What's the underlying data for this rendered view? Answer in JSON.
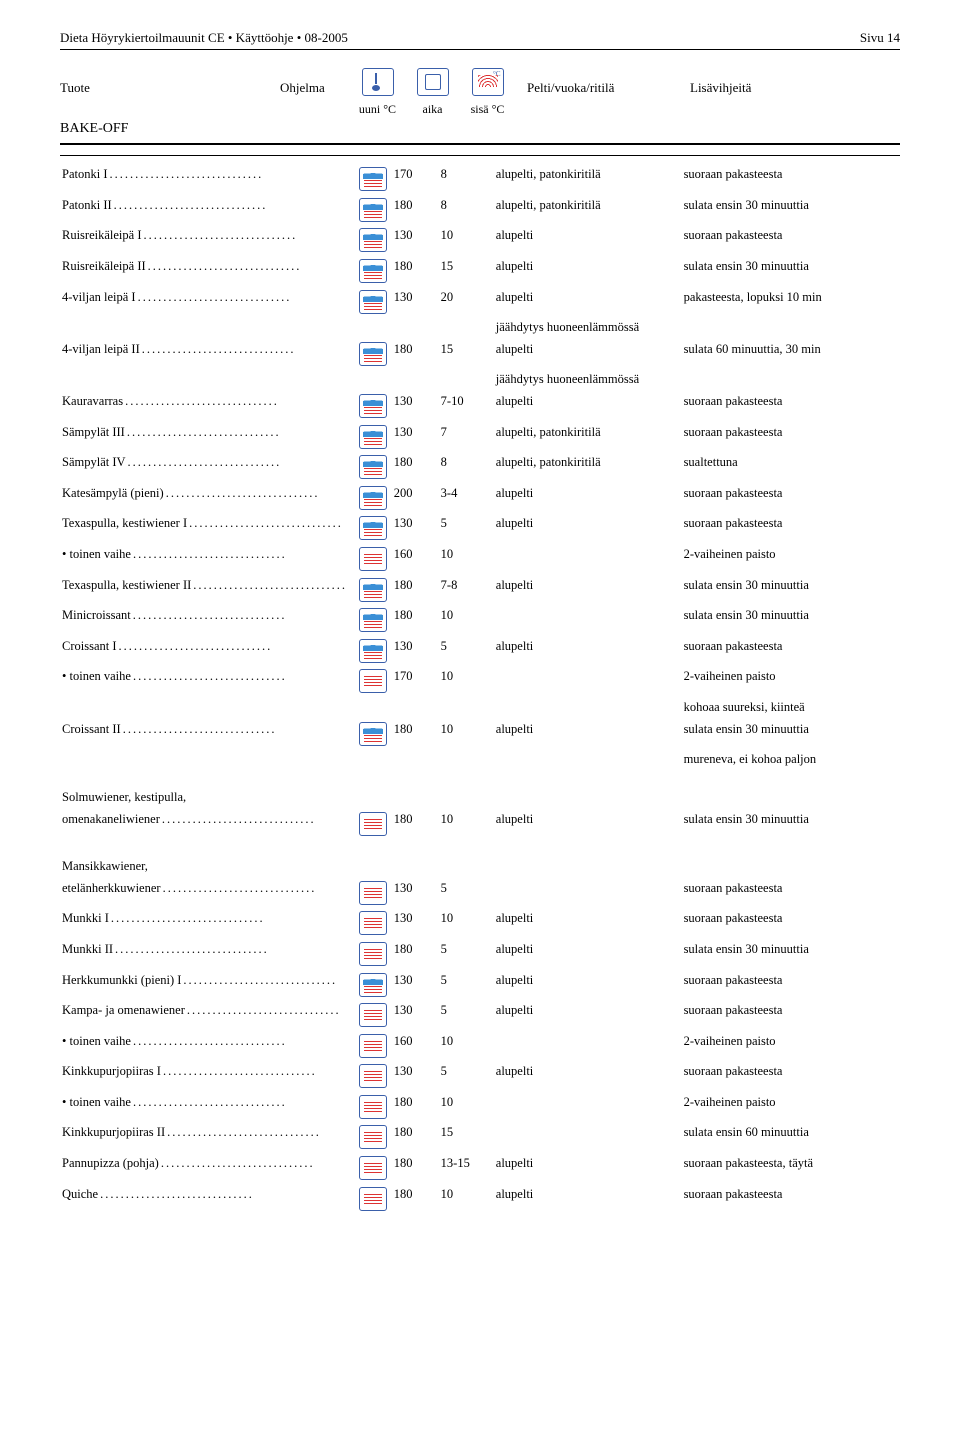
{
  "header": {
    "left": "Dieta Höyrykiertoilmauunit CE • Käyttöohje • 08-2005",
    "right": "Sivu 14"
  },
  "cols": {
    "tuote": "Tuote",
    "ohjelma": "Ohjelma",
    "pelti": "Pelti/vuoka/ritilä",
    "lisa": "Lisävihjeitä",
    "uuni": "uuni °C",
    "aika": "aika",
    "sisa": "sisä °C"
  },
  "section": "BAKE-OFF",
  "rows": [
    {
      "name": "Patonki I",
      "type": "wet",
      "uuni": "170",
      "aika": "8",
      "pelti": "alupelti, patonkiritilä",
      "lisa": "suoraan pakasteesta"
    },
    {
      "name": "Patonki II",
      "type": "wet",
      "uuni": "180",
      "aika": "8",
      "pelti": "alupelti, patonkiritilä",
      "lisa": "sulata ensin 30 minuuttia"
    },
    {
      "name": "Ruisreikäleipä I",
      "type": "wet",
      "uuni": "130",
      "aika": "10",
      "pelti": "alupelti",
      "lisa": "suoraan pakasteesta"
    },
    {
      "name": "Ruisreikäleipä II",
      "type": "wet",
      "uuni": "180",
      "aika": "15",
      "pelti": "alupelti",
      "lisa": "sulata ensin 30 minuuttia"
    },
    {
      "name": "4-viljan leipä I",
      "type": "wet",
      "uuni": "130",
      "aika": "20",
      "pelti": "alupelti",
      "lisa": "pakasteesta, lopuksi 10 min",
      "extra": "jäähdytys huoneenlämmössä"
    },
    {
      "name": "4-viljan leipä II",
      "type": "wet",
      "uuni": "180",
      "aika": "15",
      "pelti": "alupelti",
      "lisa": "sulata 60 minuuttia, 30 min",
      "extra": "jäähdytys huoneenlämmössä"
    },
    {
      "name": "Kauravarras",
      "type": "wet",
      "uuni": "130",
      "aika": "7-10",
      "pelti": "alupelti",
      "lisa": "suoraan pakasteesta"
    },
    {
      "name": "Sämpylät III",
      "type": "wet",
      "uuni": "130",
      "aika": "7",
      "pelti": "alupelti, patonkiritilä",
      "lisa": "suoraan pakasteesta"
    },
    {
      "name": "Sämpylät IV",
      "type": "wet",
      "uuni": "180",
      "aika": "8",
      "pelti": "alupelti, patonkiritilä",
      "lisa": "sualtettuna"
    },
    {
      "name": "Katesämpylä (pieni)",
      "type": "wet",
      "uuni": "200",
      "aika": "3-4",
      "pelti": "alupelti",
      "lisa": "suoraan pakasteesta"
    },
    {
      "name": "Texaspulla, kestiwiener I",
      "type": "wet",
      "uuni": "130",
      "aika": "5",
      "pelti": "alupelti",
      "lisa": "suoraan pakasteesta"
    },
    {
      "name": "• toinen vaihe",
      "indent": true,
      "type": "dry",
      "uuni": "160",
      "aika": "10",
      "pelti": "",
      "lisa": "2-vaiheinen paisto"
    },
    {
      "name": "Texaspulla, kestiwiener II",
      "type": "wet",
      "uuni": "180",
      "aika": "7-8",
      "pelti": "alupelti",
      "lisa": "sulata ensin 30 minuuttia"
    },
    {
      "name": "Minicroissant",
      "type": "wet",
      "uuni": "180",
      "aika": "10",
      "pelti": "",
      "lisa": "sulata ensin 30 minuuttia"
    },
    {
      "name": "Croissant I",
      "type": "wet",
      "uuni": "130",
      "aika": "5",
      "pelti": "alupelti",
      "lisa": "suoraan pakasteesta"
    },
    {
      "name": "• toinen vaihe",
      "indent": true,
      "type": "dry",
      "uuni": "170",
      "aika": "10",
      "pelti": "",
      "lisa": "2-vaiheinen paisto",
      "lisa2": "kohoaa suureksi, kiinteä"
    },
    {
      "name": "Croissant II",
      "type": "wet",
      "uuni": "180",
      "aika": "10",
      "pelti": "alupelti",
      "lisa": "sulata ensin 30 minuuttia",
      "lisa2": "mureneva, ei kohoa paljon"
    },
    {
      "name": "Solmuwiener, kestipulla,",
      "pre": true
    },
    {
      "name": "omenakaneliwiener",
      "type": "dry",
      "uuni": "180",
      "aika": "10",
      "pelti": "alupelti",
      "lisa": "sulata ensin 30 minuuttia"
    },
    {
      "name": "Mansikkawiener,",
      "pre": true
    },
    {
      "name": "etelänherkkuwiener",
      "type": "dry",
      "uuni": "130",
      "aika": "5",
      "pelti": "",
      "lisa": "suoraan pakasteesta"
    },
    {
      "name": "Munkki I",
      "type": "dry",
      "uuni": "130",
      "aika": "10",
      "pelti": "alupelti",
      "lisa": "suoraan pakasteesta"
    },
    {
      "name": "Munkki II",
      "type": "dry",
      "uuni": "180",
      "aika": "5",
      "pelti": "alupelti",
      "lisa": "sulata ensin 30 minuuttia"
    },
    {
      "name": "Herkkumunkki (pieni) I",
      "type": "wet",
      "uuni": "130",
      "aika": "5",
      "pelti": "alupelti",
      "lisa": "suoraan pakasteesta"
    },
    {
      "name": "Kampa- ja omenawiener",
      "type": "dry",
      "uuni": "130",
      "aika": "5",
      "pelti": "alupelti",
      "lisa": "suoraan pakasteesta"
    },
    {
      "name": "• toinen vaihe",
      "indent": true,
      "type": "dry",
      "uuni": "160",
      "aika": "10",
      "pelti": "",
      "lisa": "2-vaiheinen paisto"
    },
    {
      "name": "Kinkkupurjopiiras I",
      "type": "dry",
      "uuni": "130",
      "aika": "5",
      "pelti": "alupelti",
      "lisa": "suoraan pakasteesta"
    },
    {
      "name": "• toinen vaihe",
      "indent": true,
      "type": "dry",
      "uuni": "180",
      "aika": "10",
      "pelti": "",
      "lisa": "2-vaiheinen paisto"
    },
    {
      "name": "Kinkkupurjopiiras II",
      "type": "dry",
      "uuni": "180",
      "aika": "15",
      "pelti": "",
      "lisa": "sulata ensin 60 minuuttia"
    },
    {
      "name": "Pannupizza (pohja)",
      "type": "dry",
      "uuni": "180",
      "aika": "13-15",
      "pelti": "alupelti",
      "lisa": "suoraan pakasteesta, täytä"
    },
    {
      "name": "Quiche",
      "type": "dry",
      "uuni": "180",
      "aika": "10",
      "pelti": "alupelti",
      "lisa": "suoraan pakasteesta"
    }
  ]
}
